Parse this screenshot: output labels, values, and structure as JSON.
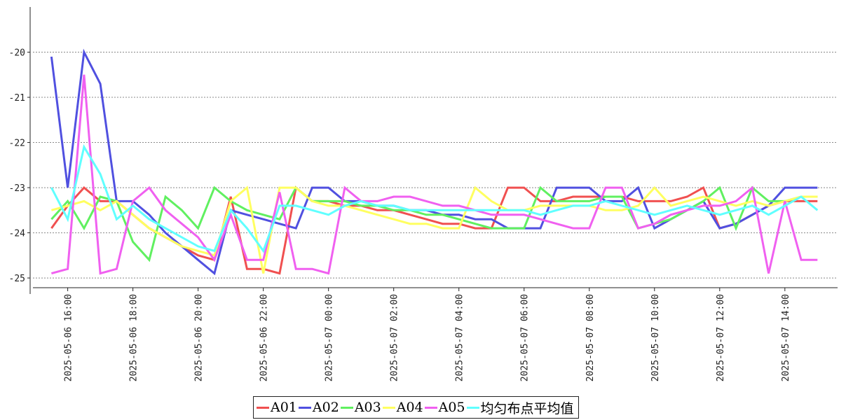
{
  "chart_data": {
    "type": "line",
    "x": [
      "2025-05-06 15:30",
      "2025-05-06 16:00",
      "2025-05-06 16:30",
      "2025-05-06 17:00",
      "2025-05-06 17:30",
      "2025-05-06 18:00",
      "2025-05-06 18:30",
      "2025-05-06 19:00",
      "2025-05-06 19:30",
      "2025-05-06 20:00",
      "2025-05-06 20:30",
      "2025-05-06 21:00",
      "2025-05-06 21:30",
      "2025-05-06 22:00",
      "2025-05-06 22:30",
      "2025-05-06 23:00",
      "2025-05-06 23:30",
      "2025-05-07 00:00",
      "2025-05-07 00:30",
      "2025-05-07 01:00",
      "2025-05-07 01:30",
      "2025-05-07 02:00",
      "2025-05-07 02:30",
      "2025-05-07 03:00",
      "2025-05-07 03:30",
      "2025-05-07 04:00",
      "2025-05-07 04:30",
      "2025-05-07 05:00",
      "2025-05-07 05:30",
      "2025-05-07 06:00",
      "2025-05-07 06:30",
      "2025-05-07 07:00",
      "2025-05-07 07:30",
      "2025-05-07 08:00",
      "2025-05-07 08:30",
      "2025-05-07 09:00",
      "2025-05-07 09:30",
      "2025-05-07 10:00",
      "2025-05-07 10:30",
      "2025-05-07 11:00",
      "2025-05-07 11:30",
      "2025-05-07 12:00",
      "2025-05-07 12:30",
      "2025-05-07 13:00",
      "2025-05-07 13:30",
      "2025-05-07 14:00",
      "2025-05-07 14:30",
      "2025-05-07 15:00"
    ],
    "series": [
      {
        "name": "A01",
        "color": "#f05050",
        "values": [
          -23.9,
          -23.4,
          -23.0,
          -23.3,
          -23.3,
          -23.6,
          -23.9,
          -24.1,
          -24.3,
          -24.5,
          -24.6,
          -23.2,
          -24.8,
          -24.8,
          -24.9,
          -23.0,
          -23.3,
          -23.3,
          -23.4,
          -23.4,
          -23.5,
          -23.5,
          -23.6,
          -23.7,
          -23.8,
          -23.8,
          -23.9,
          -23.9,
          -23.0,
          -23.0,
          -23.3,
          -23.3,
          -23.2,
          -23.2,
          -23.2,
          -23.2,
          -23.3,
          -23.3,
          -23.3,
          -23.2,
          -23.0,
          -23.9,
          -23.8,
          -23.6,
          -23.4,
          -23.3,
          -23.3,
          -23.3
        ]
      },
      {
        "name": "A02",
        "color": "#5050e0",
        "values": [
          -20.1,
          -23.0,
          -20.0,
          -20.7,
          -23.3,
          -23.3,
          -23.6,
          -24.0,
          -24.3,
          -24.6,
          -24.9,
          -23.5,
          -23.6,
          -23.7,
          -23.8,
          -23.9,
          -23.0,
          -23.0,
          -23.3,
          -23.3,
          -23.4,
          -23.4,
          -23.5,
          -23.5,
          -23.6,
          -23.6,
          -23.7,
          -23.7,
          -23.9,
          -23.9,
          -23.9,
          -23.0,
          -23.0,
          -23.0,
          -23.3,
          -23.3,
          -23.0,
          -23.9,
          -23.7,
          -23.5,
          -23.3,
          -23.9,
          -23.8,
          -23.6,
          -23.4,
          -23.0,
          -23.0,
          -23.0
        ]
      },
      {
        "name": "A03",
        "color": "#60f060",
        "values": [
          -23.7,
          -23.3,
          -23.9,
          -23.2,
          -23.3,
          -24.2,
          -24.6,
          -23.2,
          -23.5,
          -23.9,
          -23.0,
          -23.3,
          -23.5,
          -23.6,
          -23.7,
          -23.0,
          -23.3,
          -23.3,
          -23.3,
          -23.4,
          -23.4,
          -23.5,
          -23.5,
          -23.6,
          -23.6,
          -23.7,
          -23.8,
          -23.9,
          -23.9,
          -23.9,
          -23.0,
          -23.3,
          -23.3,
          -23.3,
          -23.2,
          -23.2,
          -23.9,
          -23.8,
          -23.7,
          -23.5,
          -23.3,
          -23.0,
          -23.9,
          -23.0,
          -23.3,
          -23.3,
          -23.2,
          -23.2
        ]
      },
      {
        "name": "A04",
        "color": "#ffff60",
        "values": [
          -23.5,
          -23.4,
          -23.3,
          -23.5,
          -23.3,
          -23.6,
          -23.9,
          -24.1,
          -24.3,
          -24.4,
          -24.5,
          -23.3,
          -23.0,
          -24.9,
          -23.0,
          -23.0,
          -23.3,
          -23.4,
          -23.4,
          -23.5,
          -23.6,
          -23.7,
          -23.8,
          -23.8,
          -23.9,
          -23.9,
          -23.0,
          -23.3,
          -23.5,
          -23.5,
          -23.4,
          -23.4,
          -23.4,
          -23.4,
          -23.5,
          -23.5,
          -23.4,
          -23.0,
          -23.4,
          -23.3,
          -23.2,
          -23.3,
          -23.4,
          -23.3,
          -23.4,
          -23.3,
          -23.2,
          -23.2
        ]
      },
      {
        "name": "A05",
        "color": "#f060f0",
        "values": [
          -24.9,
          -24.8,
          -20.5,
          -24.9,
          -24.8,
          -23.3,
          -23.0,
          -23.5,
          -23.8,
          -24.1,
          -24.6,
          -23.6,
          -24.6,
          -24.6,
          -23.1,
          -24.8,
          -24.8,
          -24.9,
          -23.0,
          -23.3,
          -23.3,
          -23.2,
          -23.2,
          -23.3,
          -23.4,
          -23.4,
          -23.5,
          -23.6,
          -23.6,
          -23.6,
          -23.7,
          -23.8,
          -23.9,
          -23.9,
          -23.0,
          -23.0,
          -23.9,
          -23.8,
          -23.6,
          -23.5,
          -23.4,
          -23.4,
          -23.3,
          -23.0,
          -24.9,
          -23.3,
          -24.6,
          -24.6
        ]
      },
      {
        "name": "均匀布点平均值",
        "color": "#60ffff",
        "values": [
          -23.0,
          -23.7,
          -22.1,
          -22.7,
          -23.7,
          -23.4,
          -23.7,
          -23.9,
          -24.1,
          -24.3,
          -24.4,
          -23.5,
          -23.9,
          -24.4,
          -23.4,
          -23.4,
          -23.5,
          -23.6,
          -23.4,
          -23.3,
          -23.4,
          -23.4,
          -23.5,
          -23.5,
          -23.5,
          -23.5,
          -23.5,
          -23.5,
          -23.5,
          -23.5,
          -23.6,
          -23.5,
          -23.4,
          -23.4,
          -23.3,
          -23.4,
          -23.5,
          -23.6,
          -23.5,
          -23.4,
          -23.5,
          -23.6,
          -23.5,
          -23.4,
          -23.6,
          -23.4,
          -23.2,
          -23.5
        ]
      }
    ],
    "xlim": [
      "2025-05-06 14:56",
      "2025-05-07 15:37"
    ],
    "xticks": [
      "2025-05-06 16:00",
      "2025-05-06 18:00",
      "2025-05-06 20:00",
      "2025-05-06 22:00",
      "2025-05-07 00:00",
      "2025-05-07 02:00",
      "2025-05-07 04:00",
      "2025-05-07 06:00",
      "2025-05-07 08:00",
      "2025-05-07 10:00",
      "2025-05-07 12:00",
      "2025-05-07 14:00"
    ],
    "ylim": [
      -25.2,
      -19.0
    ],
    "yticks": [
      -25,
      -24,
      -23,
      -22,
      -21,
      -20
    ],
    "grid": true,
    "legend": "bottom"
  }
}
